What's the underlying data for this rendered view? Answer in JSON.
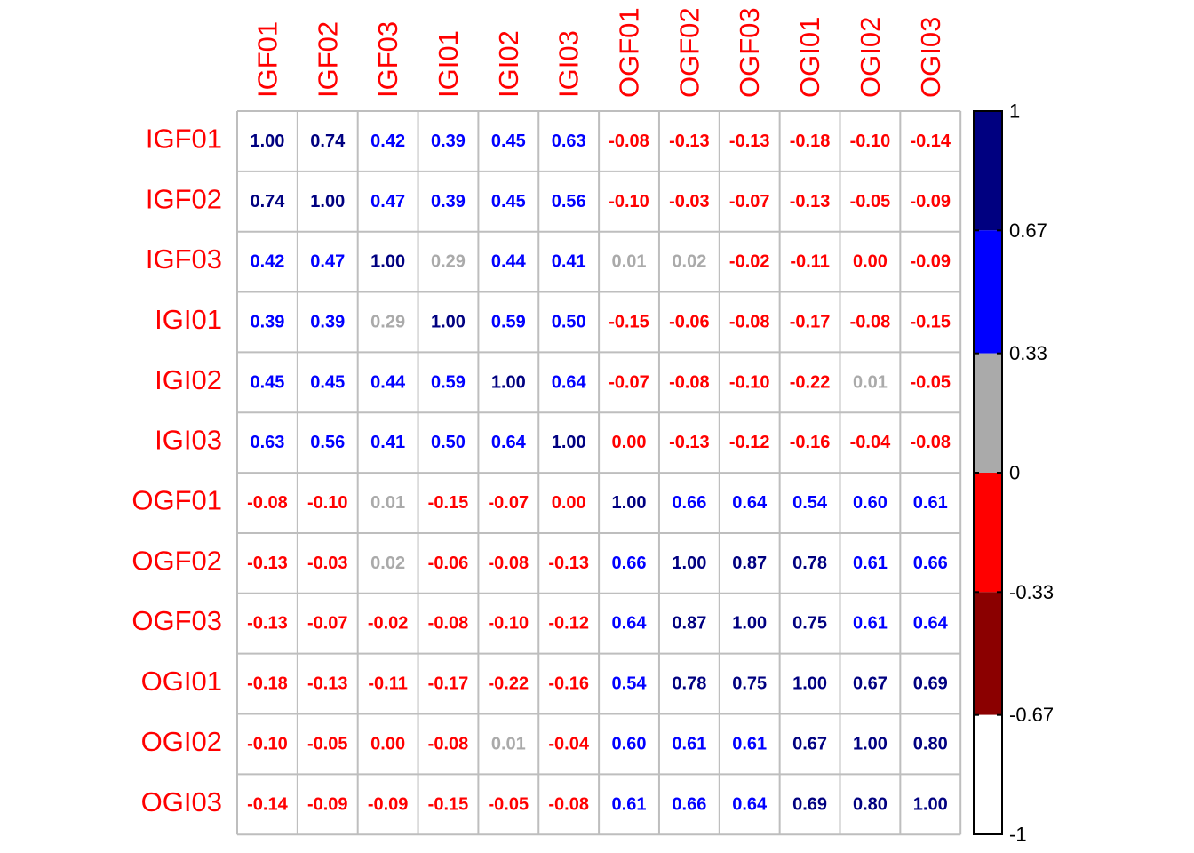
{
  "chart_data": {
    "type": "heatmap",
    "title": "",
    "row_labels": [
      "IGF01",
      "IGF02",
      "IGF03",
      "IGI01",
      "IGI02",
      "IGI03",
      "OGF01",
      "OGF02",
      "OGF03",
      "OGI01",
      "OGI02",
      "OGI03"
    ],
    "col_labels": [
      "IGF01",
      "IGF02",
      "IGF03",
      "IGI01",
      "IGI02",
      "IGI03",
      "OGF01",
      "OGF02",
      "OGF03",
      "OGI01",
      "OGI02",
      "OGI03"
    ],
    "value_labels": [
      [
        "1.00",
        "0.74",
        "0.42",
        "0.39",
        "0.45",
        "0.63",
        "-0.08",
        "-0.13",
        "-0.13",
        "-0.18",
        "-0.10",
        "-0.14"
      ],
      [
        "0.74",
        "1.00",
        "0.47",
        "0.39",
        "0.45",
        "0.56",
        "-0.10",
        "-0.03",
        "-0.07",
        "-0.13",
        "-0.05",
        "-0.09"
      ],
      [
        "0.42",
        "0.47",
        "1.00",
        "0.29",
        "0.44",
        "0.41",
        "0.01",
        "0.02",
        "-0.02",
        "-0.11",
        "0.00",
        "-0.09"
      ],
      [
        "0.39",
        "0.39",
        "0.29",
        "1.00",
        "0.59",
        "0.50",
        "-0.15",
        "-0.06",
        "-0.08",
        "-0.17",
        "-0.08",
        "-0.15"
      ],
      [
        "0.45",
        "0.45",
        "0.44",
        "0.59",
        "1.00",
        "0.64",
        "-0.07",
        "-0.08",
        "-0.10",
        "-0.22",
        "0.01",
        "-0.05"
      ],
      [
        "0.63",
        "0.56",
        "0.41",
        "0.50",
        "0.64",
        "1.00",
        "0.00",
        "-0.13",
        "-0.12",
        "-0.16",
        "-0.04",
        "-0.08"
      ],
      [
        "-0.08",
        "-0.10",
        "0.01",
        "-0.15",
        "-0.07",
        "0.00",
        "1.00",
        "0.66",
        "0.64",
        "0.54",
        "0.60",
        "0.61"
      ],
      [
        "-0.13",
        "-0.03",
        "0.02",
        "-0.06",
        "-0.08",
        "-0.13",
        "0.66",
        "1.00",
        "0.87",
        "0.78",
        "0.61",
        "0.66"
      ],
      [
        "-0.13",
        "-0.07",
        "-0.02",
        "-0.08",
        "-0.10",
        "-0.12",
        "0.64",
        "0.87",
        "1.00",
        "0.75",
        "0.61",
        "0.64"
      ],
      [
        "-0.18",
        "-0.13",
        "-0.11",
        "-0.17",
        "-0.22",
        "-0.16",
        "0.54",
        "0.78",
        "0.75",
        "1.00",
        "0.67",
        "0.69"
      ],
      [
        "-0.10",
        "-0.05",
        "0.00",
        "-0.08",
        "0.01",
        "-0.04",
        "0.60",
        "0.61",
        "0.61",
        "0.67",
        "1.00",
        "0.80"
      ],
      [
        "-0.14",
        "-0.09",
        "-0.09",
        "-0.15",
        "-0.05",
        "-0.08",
        "0.61",
        "0.66",
        "0.64",
        "0.69",
        "0.80",
        "1.00"
      ]
    ],
    "value_colors": [
      [
        "#000080",
        "#000080",
        "#0000FF",
        "#0000FF",
        "#0000FF",
        "#0000FF",
        "#FF0000",
        "#FF0000",
        "#FF0000",
        "#FF0000",
        "#FF0000",
        "#FF0000"
      ],
      [
        "#000080",
        "#000080",
        "#0000FF",
        "#0000FF",
        "#0000FF",
        "#0000FF",
        "#FF0000",
        "#FF0000",
        "#FF0000",
        "#FF0000",
        "#FF0000",
        "#FF0000"
      ],
      [
        "#0000FF",
        "#0000FF",
        "#000080",
        "#AAAAAA",
        "#0000FF",
        "#0000FF",
        "#AAAAAA",
        "#AAAAAA",
        "#FF0000",
        "#FF0000",
        "#FF0000",
        "#FF0000"
      ],
      [
        "#0000FF",
        "#0000FF",
        "#AAAAAA",
        "#000080",
        "#0000FF",
        "#0000FF",
        "#FF0000",
        "#FF0000",
        "#FF0000",
        "#FF0000",
        "#FF0000",
        "#FF0000"
      ],
      [
        "#0000FF",
        "#0000FF",
        "#0000FF",
        "#0000FF",
        "#000080",
        "#0000FF",
        "#FF0000",
        "#FF0000",
        "#FF0000",
        "#FF0000",
        "#AAAAAA",
        "#FF0000"
      ],
      [
        "#0000FF",
        "#0000FF",
        "#0000FF",
        "#0000FF",
        "#0000FF",
        "#000080",
        "#FF0000",
        "#FF0000",
        "#FF0000",
        "#FF0000",
        "#FF0000",
        "#FF0000"
      ],
      [
        "#FF0000",
        "#FF0000",
        "#AAAAAA",
        "#FF0000",
        "#FF0000",
        "#FF0000",
        "#000080",
        "#0000FF",
        "#0000FF",
        "#0000FF",
        "#0000FF",
        "#0000FF"
      ],
      [
        "#FF0000",
        "#FF0000",
        "#AAAAAA",
        "#FF0000",
        "#FF0000",
        "#FF0000",
        "#0000FF",
        "#000080",
        "#000080",
        "#000080",
        "#0000FF",
        "#0000FF"
      ],
      [
        "#FF0000",
        "#FF0000",
        "#FF0000",
        "#FF0000",
        "#FF0000",
        "#FF0000",
        "#0000FF",
        "#000080",
        "#000080",
        "#000080",
        "#0000FF",
        "#0000FF"
      ],
      [
        "#FF0000",
        "#FF0000",
        "#FF0000",
        "#FF0000",
        "#FF0000",
        "#FF0000",
        "#0000FF",
        "#000080",
        "#000080",
        "#000080",
        "#000080",
        "#000080"
      ],
      [
        "#FF0000",
        "#FF0000",
        "#FF0000",
        "#FF0000",
        "#AAAAAA",
        "#FF0000",
        "#0000FF",
        "#0000FF",
        "#0000FF",
        "#000080",
        "#000080",
        "#000080"
      ],
      [
        "#FF0000",
        "#FF0000",
        "#FF0000",
        "#FF0000",
        "#FF0000",
        "#FF0000",
        "#0000FF",
        "#0000FF",
        "#0000FF",
        "#000080",
        "#000080",
        "#000080"
      ]
    ],
    "label_color": "#FF0000",
    "grid_color": "#BEBEBE",
    "cell_background": "#FFFFFF",
    "colorbar": {
      "range": [
        -1,
        1
      ],
      "ticks": [
        1,
        0.67,
        0.33,
        0,
        -0.33,
        -0.67,
        -1
      ],
      "tick_labels": [
        "1",
        "0.67",
        "0.33",
        "0",
        "-0.33",
        "-0.67",
        "-1"
      ],
      "bands": [
        {
          "from": 0.67,
          "to": 1,
          "color": "#000080"
        },
        {
          "from": 0.33,
          "to": 0.67,
          "color": "#0000FF"
        },
        {
          "from": 0,
          "to": 0.33,
          "color": "#AAAAAA"
        },
        {
          "from": -0.33,
          "to": 0,
          "color": "#FF0000"
        },
        {
          "from": -0.67,
          "to": -0.33,
          "color": "#8B0000"
        },
        {
          "from": -1,
          "to": -0.67,
          "color": "#FFFFFF"
        }
      ]
    },
    "legend_placement": "right",
    "grid": true
  }
}
